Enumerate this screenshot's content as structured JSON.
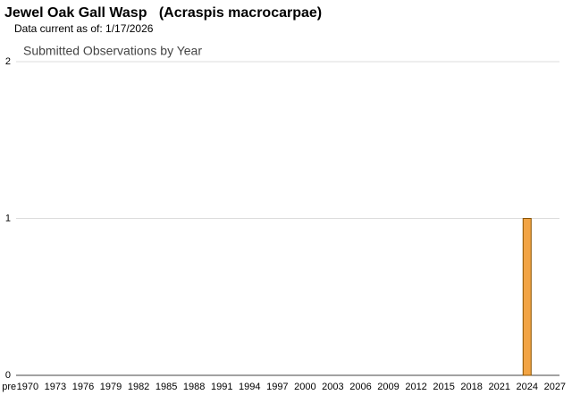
{
  "header": {
    "title": "Jewel Oak Gall Wasp   (Acraspis macrocarpae)",
    "subtitle": "Data current as of: 1/17/2026"
  },
  "chart_data": {
    "type": "bar",
    "title": "Submitted Observations by Year",
    "categories": [
      "pre",
      null,
      "1970",
      null,
      null,
      "1973",
      null,
      null,
      "1976",
      null,
      null,
      "1979",
      null,
      null,
      "1982",
      null,
      null,
      "1985",
      null,
      null,
      "1988",
      null,
      null,
      "1991",
      null,
      null,
      "1994",
      null,
      null,
      "1997",
      null,
      null,
      "2000",
      null,
      null,
      "2003",
      null,
      null,
      "2006",
      null,
      null,
      "2009",
      null,
      null,
      "2012",
      null,
      null,
      "2015",
      null,
      null,
      "2018",
      null,
      null,
      "2021",
      null,
      null,
      "2024",
      null,
      null,
      "2027"
    ],
    "values": [
      0,
      0,
      0,
      0,
      0,
      0,
      0,
      0,
      0,
      0,
      0,
      0,
      0,
      0,
      0,
      0,
      0,
      0,
      0,
      0,
      0,
      0,
      0,
      0,
      0,
      0,
      0,
      0,
      0,
      0,
      0,
      0,
      0,
      0,
      0,
      0,
      0,
      0,
      0,
      0,
      0,
      0,
      0,
      0,
      0,
      0,
      0,
      0,
      0,
      0,
      0,
      0,
      0,
      0,
      0,
      0,
      1,
      0,
      0,
      0
    ],
    "color": "#f2a444",
    "ylim": [
      0,
      2
    ],
    "yticks": [
      0,
      1,
      2
    ],
    "grid": true
  }
}
